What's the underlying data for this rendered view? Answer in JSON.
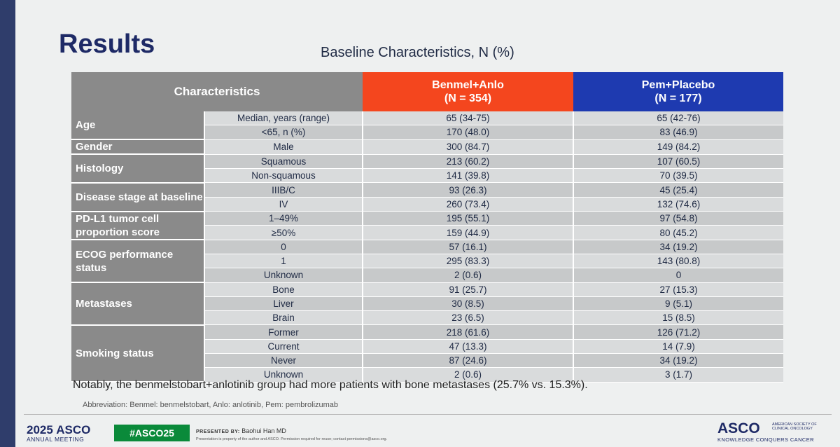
{
  "title": "Results",
  "subtitle": "Baseline Characteristics, N (%)",
  "table": {
    "header": {
      "characteristics": "Characteristics",
      "arm_a": {
        "name": "Benmel+Anlo",
        "n": "(N  = 354)",
        "color": "#f4461e"
      },
      "arm_b": {
        "name": "Pem+Placebo",
        "n": "(N = 177)",
        "color": "#1e3ab0"
      }
    },
    "rows": [
      {
        "cat": "Age",
        "sub": "Median, years (range)",
        "a": "65 (34-75)",
        "b": "65 (42-76)"
      },
      {
        "sub": "<65, n (%)",
        "a": "170 (48.0)",
        "b": "83 (46.9)"
      },
      {
        "cat": "Gender",
        "sub": "Male",
        "a": "300 (84.7)",
        "b": "149 (84.2)"
      },
      {
        "cat": "Histology",
        "sub": "Squamous",
        "a": "213 (60.2)",
        "b": "107 (60.5)"
      },
      {
        "sub": "Non-squamous",
        "a": "141 (39.8)",
        "b": "70 (39.5)"
      },
      {
        "cat": "Disease stage at baseline",
        "sub": "IIIB/C",
        "a": "93 (26.3)",
        "b": "45 (25.4)"
      },
      {
        "sub": "IV",
        "a": "260 (73.4)",
        "b": "132 (74.6)"
      },
      {
        "cat": "PD-L1 tumor  cell proportion score",
        "sub": "1–49%",
        "a": "195 (55.1)",
        "b": "97 (54.8)"
      },
      {
        "sub": "≥50%",
        "a": "159 (44.9)",
        "b": "80 (45.2)"
      },
      {
        "cat": "ECOG performance status",
        "sub": "0",
        "a": "57 (16.1)",
        "b": "34 (19.2)"
      },
      {
        "sub": "1",
        "a": "295 (83.3)",
        "b": "143 (80.8)"
      },
      {
        "sub": "Unknown",
        "a": "2 (0.6)",
        "b": "0"
      },
      {
        "cat": "Metastases",
        "sub": "Bone",
        "a": "91 (25.7)",
        "b": "27 (15.3)"
      },
      {
        "sub": "Liver",
        "a": "30 (8.5)",
        "b": "9 (5.1)"
      },
      {
        "sub": "Brain",
        "a": "23 (6.5)",
        "b": "15 (8.5)"
      },
      {
        "cat": "Smoking status",
        "sub": "Former",
        "a": "218 (61.6)",
        "b": "126 (71.2)"
      },
      {
        "sub": "Current",
        "a": "47 (13.3)",
        "b": "14 (7.9)"
      },
      {
        "sub": "Never",
        "a": "87 (24.6)",
        "b": "34 (19.2)"
      },
      {
        "sub": "Unknown",
        "a": "2 (0.6)",
        "b": "3 (1.7)"
      }
    ]
  },
  "note": "Notably, the benmelstobart+anlotinib group had more patients with bone metastases (25.7% vs. 15.3%).",
  "abbreviation": "Abbreviation: Benmel: benmelstobart, Anlo: anlotinib, Pem: pembrolizumab",
  "footer": {
    "meeting_year": "2025",
    "meeting_org": "ASCO",
    "meeting_name": "ANNUAL MEETING",
    "hashtag": "#ASCO25",
    "presented_by_label": "PRESENTED BY:",
    "presenter": "Baohui Han MD",
    "property_notice": "Presentation is property of the author and ASCO. Permission required for reuse; contact permissions@asco.org.",
    "logo_name": "ASCO",
    "logo_society": "AMERICAN SOCIETY OF CLINICAL ONCOLOGY",
    "logo_tagline": "KNOWLEDGE CONQUERS CANCER"
  }
}
